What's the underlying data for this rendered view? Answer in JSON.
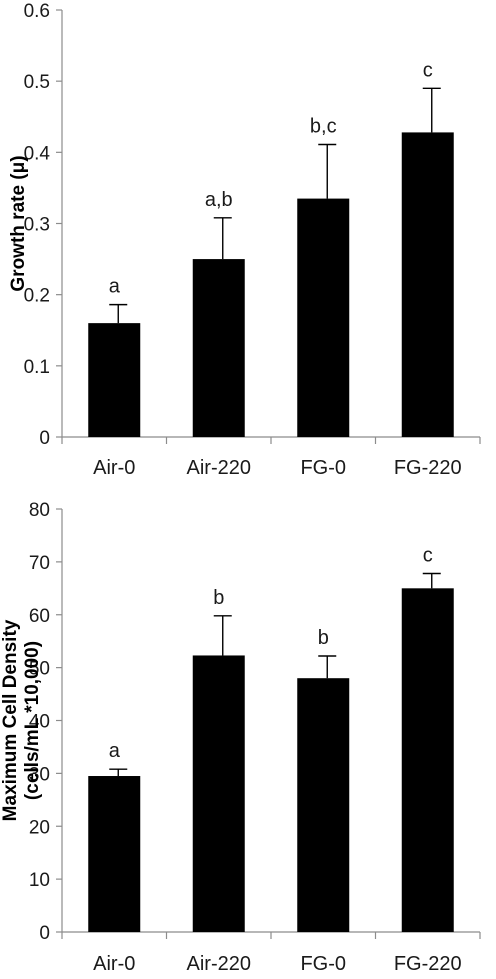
{
  "chart_data": [
    {
      "type": "bar",
      "categories": [
        "Air-0",
        "Air-220",
        "FG-0",
        "FG-220"
      ],
      "values": [
        0.16,
        0.25,
        0.335,
        0.428
      ],
      "errors": [
        0.026,
        0.058,
        0.076,
        0.062
      ],
      "significance": [
        "a",
        "a,b",
        "b,c",
        "c"
      ],
      "ylabel": "Growth rate (μ)",
      "ylabel_lines": [
        "Growth rate (μ)"
      ],
      "ylim": [
        0,
        0.6
      ],
      "yticks": [
        0,
        0.1,
        0.2,
        0.3,
        0.4,
        0.5,
        0.6
      ],
      "ytick_labels": [
        "0",
        "0.1",
        "0.2",
        "0.3",
        "0.4",
        "0.5",
        "0.6"
      ],
      "bar_color": "#000000",
      "grid": false
    },
    {
      "type": "bar",
      "categories": [
        "Air-0",
        "Air-220",
        "FG-0",
        "FG-220"
      ],
      "values": [
        29.5,
        52.3,
        48.0,
        65.0
      ],
      "errors": [
        1.3,
        7.5,
        4.2,
        2.8
      ],
      "significance": [
        "a",
        "b",
        "b",
        "c"
      ],
      "ylabel": "Maximum Cell Density (cells/mL *10,000)",
      "ylabel_lines": [
        "Maximum Cell Density",
        "(cells/mL *10,000)"
      ],
      "ylim": [
        0,
        80
      ],
      "yticks": [
        0,
        10,
        20,
        30,
        40,
        50,
        60,
        70,
        80
      ],
      "ytick_labels": [
        "0",
        "10",
        "20",
        "30",
        "40",
        "50",
        "60",
        "70",
        "80"
      ],
      "bar_color": "#000000",
      "grid": false
    }
  ]
}
